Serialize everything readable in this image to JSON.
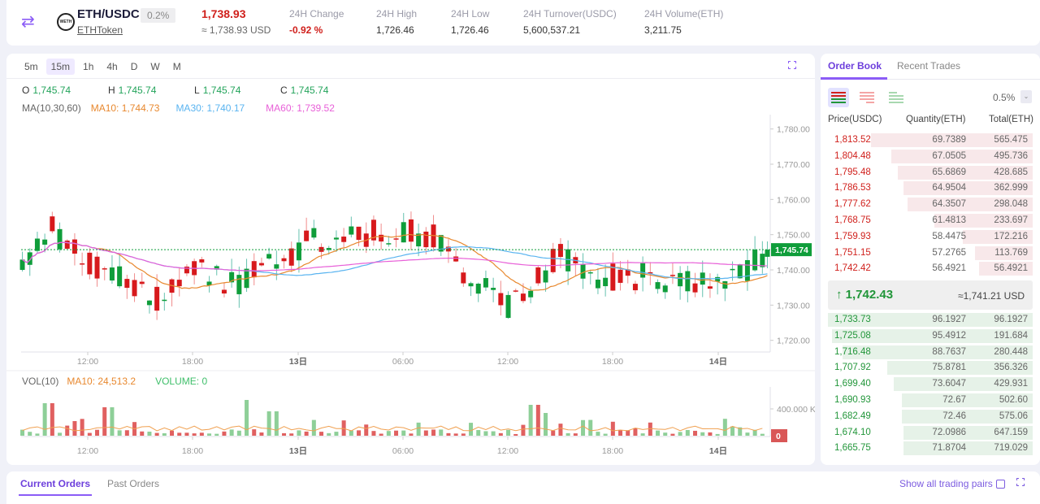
{
  "header": {
    "swap_icon": "⇄",
    "logo_text": "WETH",
    "pair": "ETH/USDC",
    "fee": "0.2%",
    "token_link": "ETHToken",
    "last_price": "1,738.93",
    "last_price_usd": "≈ 1,738.93 USD",
    "stats": [
      {
        "label": "24H Change",
        "value": "-0.92 %",
        "red": true
      },
      {
        "label": "24H High",
        "value": "1,726.46"
      },
      {
        "label": "24H Low",
        "value": "1,726.46"
      },
      {
        "label": "24H Turnover(USDC)",
        "value": "5,600,537.21"
      },
      {
        "label": "24H Volume(ETH)",
        "value": "3,211.75"
      }
    ]
  },
  "chart": {
    "timeframes": [
      "5m",
      "15m",
      "1h",
      "4h",
      "D",
      "W",
      "M"
    ],
    "active_timeframe": "15m",
    "expand_icon": "⛶",
    "ohlc": {
      "O": "1,745.74",
      "H": "1,745.74",
      "L": "1,745.74",
      "C": "1,745.74"
    },
    "ma": {
      "label": "MA(10,30,60)",
      "ma10": "MA10: 1,744.73",
      "ma30": "MA30: 1,740.17",
      "ma60": "MA60: 1,739.52"
    },
    "vol": {
      "label": "VOL(10)",
      "ma10": "MA10: 24,513.2",
      "volume": "VOLUME: 0"
    },
    "current_price_tag": "1,745.74",
    "volume_zero_tag": "0",
    "x_ticks": [
      "12:00",
      "18:00",
      "13日",
      "06:00",
      "12:00",
      "18:00",
      "14日"
    ],
    "y_ticks": [
      "1,780.00",
      "1,770.00",
      "1,760.00",
      "1,750.00",
      "1,740.00",
      "1,730.00",
      "1,720.00"
    ],
    "vol_ticks": [
      "400.000 K"
    ],
    "colors": {
      "up": "#0f9d3a",
      "down": "#d7191c",
      "ma10": "#e8882e",
      "ma30": "#5ab4f0",
      "ma60": "#e860d8"
    }
  },
  "chart_data": {
    "type": "candlestick",
    "title": "ETH/USDC 15m",
    "y_range": [
      1716,
      1782
    ],
    "x_labels": [
      "12:00",
      "18:00",
      "13日",
      "06:00",
      "12:00",
      "18:00",
      "14日"
    ],
    "last_close": 1745.74,
    "ma10_last": 1744.73,
    "ma30_last": 1740.17,
    "ma60_last": 1739.52,
    "volume_ma10": 24513.2,
    "volume_axis": [
      "400.000 K"
    ]
  },
  "orderbook": {
    "tabs": [
      "Order Book",
      "Recent Trades"
    ],
    "precision": "0.5%",
    "headers": [
      "Price(USDC)",
      "Quantity(ETH)",
      "Total(ETH)"
    ],
    "asks": [
      {
        "price": "1,813.52",
        "qty": "69.7389",
        "total": "565.475",
        "depth": 0.79
      },
      {
        "price": "1,804.48",
        "qty": "67.0505",
        "total": "495.736",
        "depth": 0.69
      },
      {
        "price": "1,795.48",
        "qty": "65.6869",
        "total": "428.685",
        "depth": 0.66
      },
      {
        "price": "1,786.53",
        "qty": "64.9504",
        "total": "362.999",
        "depth": 0.63
      },
      {
        "price": "1,777.62",
        "qty": "64.3507",
        "total": "298.048",
        "depth": 0.61
      },
      {
        "price": "1,768.75",
        "qty": "61.4813",
        "total": "233.697",
        "depth": 0.48
      },
      {
        "price": "1,759.93",
        "qty": "58.4475",
        "total": "172.216",
        "depth": 0.34
      },
      {
        "price": "1,751.15",
        "qty": "57.2765",
        "total": "113.769",
        "depth": 0.28
      },
      {
        "price": "1,742.42",
        "qty": "56.4921",
        "total": "56.4921",
        "depth": 0.26
      }
    ],
    "mid": {
      "arrow": "↑",
      "price": "1,742.43",
      "usd": "≈1,741.21 USD"
    },
    "bids": [
      {
        "price": "1,733.73",
        "qty": "96.1927",
        "total": "96.1927",
        "depth": 1.0
      },
      {
        "price": "1,725.08",
        "qty": "95.4912",
        "total": "191.684",
        "depth": 0.98
      },
      {
        "price": "1,716.48",
        "qty": "88.7637",
        "total": "280.448",
        "depth": 0.93
      },
      {
        "price": "1,707.92",
        "qty": "75.8781",
        "total": "356.326",
        "depth": 0.71
      },
      {
        "price": "1,699.40",
        "qty": "73.6047",
        "total": "429.931",
        "depth": 0.68
      },
      {
        "price": "1,690.93",
        "qty": "72.67",
        "total": "502.60",
        "depth": 0.64
      },
      {
        "price": "1,682.49",
        "qty": "72.46",
        "total": "575.06",
        "depth": 0.64
      },
      {
        "price": "1,674.10",
        "qty": "72.0986",
        "total": "647.159",
        "depth": 0.63
      },
      {
        "price": "1,665.75",
        "qty": "71.8704",
        "total": "719.029",
        "depth": 0.63
      }
    ]
  },
  "orders": {
    "tabs": [
      "Current Orders",
      "Past Orders"
    ],
    "show_all": "Show all trading pairs",
    "fullscreen_icon": "⛶"
  }
}
